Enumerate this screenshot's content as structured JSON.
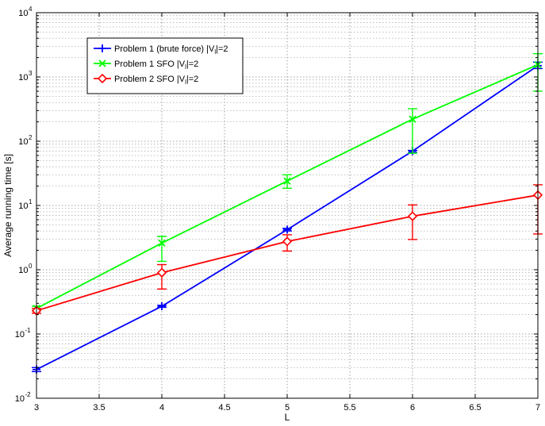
{
  "chart_data": {
    "type": "line",
    "title": "",
    "xlabel": "L",
    "ylabel": "Average running time [s]",
    "xlim": [
      3,
      7
    ],
    "ylim": [
      0.01,
      10000
    ],
    "yscale": "log",
    "grid": true,
    "legend_position": "top-left",
    "x_ticks": [
      "3",
      "3.5",
      "4",
      "4.5",
      "5",
      "5.5",
      "6",
      "6.5",
      "7"
    ],
    "y_ticks": [
      {
        "base": "10",
        "exp": "-2"
      },
      {
        "base": "10",
        "exp": "-1"
      },
      {
        "base": "10",
        "exp": "0"
      },
      {
        "base": "10",
        "exp": "1"
      },
      {
        "base": "10",
        "exp": "2"
      },
      {
        "base": "10",
        "exp": "3"
      },
      {
        "base": "10",
        "exp": "4"
      }
    ],
    "x": [
      3,
      4,
      5,
      6,
      7
    ],
    "series": [
      {
        "name": "Problem 1 (brute force) |V",
        "name_sub": "l",
        "name_suffix": "|=2",
        "color": "#0000ff",
        "marker": "plus",
        "values": [
          0.028,
          0.27,
          4.2,
          70,
          1500
        ],
        "err_low": [
          0.026,
          0.26,
          4.0,
          66,
          1350
        ],
        "err_high": [
          0.03,
          0.28,
          4.4,
          72,
          1700
        ]
      },
      {
        "name": "Problem 1 SFO |V",
        "name_sub": "l",
        "name_suffix": "|=2",
        "color": "#00ff00",
        "marker": "x",
        "values": [
          0.25,
          2.6,
          24,
          220,
          1550
        ],
        "err_low": [
          0.23,
          1.35,
          18.5,
          65,
          600
        ],
        "err_high": [
          0.27,
          3.3,
          30,
          320,
          2300
        ]
      },
      {
        "name": "Problem 2 SFO |V",
        "name_sub": "l",
        "name_suffix": "|=2",
        "color": "#ff0000",
        "marker": "diamond",
        "values": [
          0.23,
          0.9,
          2.75,
          6.8,
          14.5
        ],
        "err_low": [
          0.21,
          0.5,
          1.95,
          2.95,
          3.6
        ],
        "err_high": [
          0.25,
          1.2,
          3.5,
          10.2,
          21
        ]
      }
    ]
  }
}
